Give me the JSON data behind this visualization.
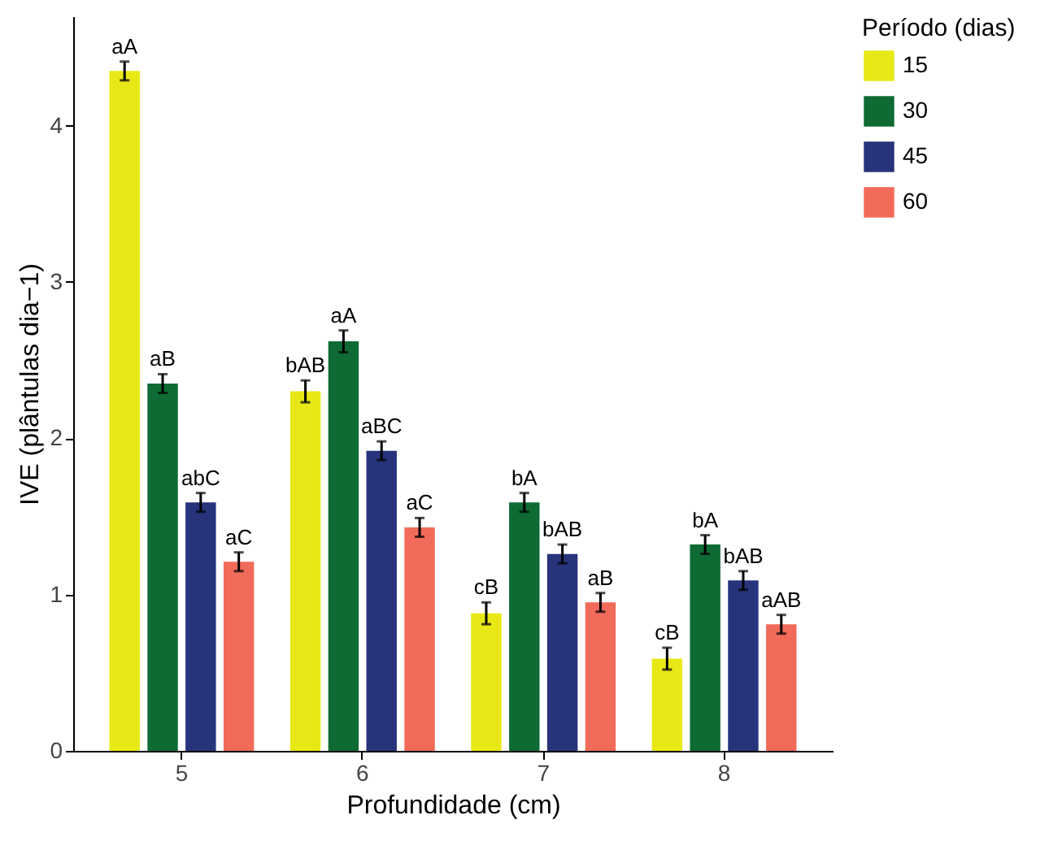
{
  "chart_data": {
    "type": "bar",
    "xlabel": "Profundidade (cm)",
    "ylabel": "IVE (plântulas dia−1)",
    "legend_title": "Período (dias)",
    "legend": "right",
    "grid": false,
    "categories": [
      "5",
      "6",
      "7",
      "8"
    ],
    "series": [
      {
        "name": "15",
        "color": "#e8e817",
        "values": [
          4.35,
          2.3,
          0.88,
          0.59
        ],
        "errors": [
          0.06,
          0.07,
          0.07,
          0.07
        ],
        "value_labels": [
          "aA",
          "bAB",
          "cB",
          "cB"
        ]
      },
      {
        "name": "30",
        "color": "#0e6b34",
        "values": [
          2.35,
          2.62,
          1.59,
          1.32
        ],
        "errors": [
          0.06,
          0.07,
          0.06,
          0.06
        ],
        "value_labels": [
          "aB",
          "aA",
          "bA",
          "bA"
        ]
      },
      {
        "name": "45",
        "color": "#27337a",
        "values": [
          1.59,
          1.92,
          1.26,
          1.09
        ],
        "errors": [
          0.06,
          0.06,
          0.06,
          0.06
        ],
        "value_labels": [
          "abC",
          "aBC",
          "bAB",
          "bAB"
        ]
      },
      {
        "name": "60",
        "color": "#f26b5a",
        "values": [
          1.21,
          1.43,
          0.95,
          0.81
        ],
        "errors": [
          0.06,
          0.06,
          0.06,
          0.06
        ],
        "value_labels": [
          "aC",
          "aC",
          "aB",
          "aAB"
        ]
      }
    ],
    "ylim": [
      0,
      4.7
    ],
    "yticks": [
      0,
      1,
      2,
      3,
      4
    ]
  }
}
